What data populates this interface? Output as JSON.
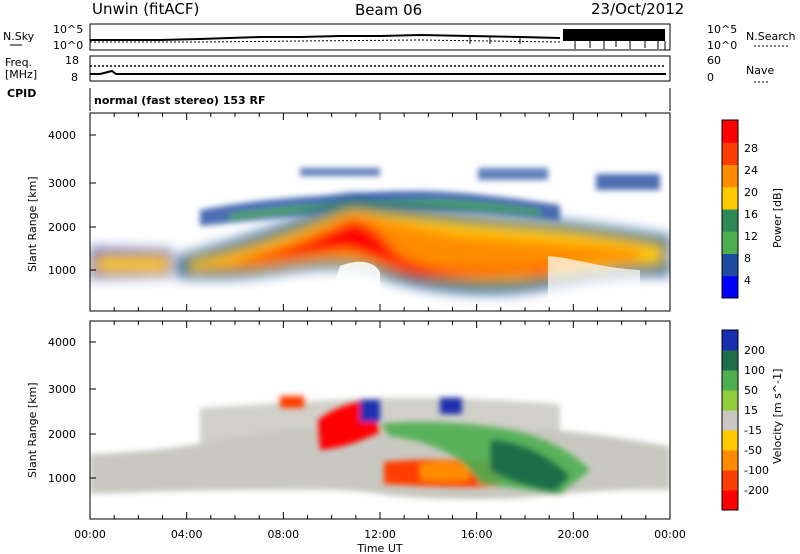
{
  "header": {
    "station": "Unwin (fitACF)",
    "beam": "Beam 06",
    "date": "23/Oct/2012"
  },
  "top_panels": {
    "nsky_label": "N.Sky",
    "nsky_ticks": [
      "10^5",
      "10^0"
    ],
    "nsky_right_ticks": [
      "10^5",
      "10^0"
    ],
    "nsearch_label": "N.Search",
    "freq_label_line1": "Freq.",
    "freq_label_line2": "[MHz]",
    "freq_ticks": [
      "18",
      "8"
    ],
    "nave_ticks": [
      "60",
      "0"
    ],
    "nave_label": "Nave",
    "cpid_label": "CPID",
    "cpid_text": "normal (fast stereo) 153 RF"
  },
  "x_axis": {
    "label": "Time UT",
    "ticks": [
      "00:00",
      "04:00",
      "08:00",
      "12:00",
      "16:00",
      "20:00",
      "00:00"
    ]
  },
  "chart_data": [
    {
      "type": "heatmap",
      "title": "",
      "quantity": "Power",
      "colorbar_label": "Power [dB]",
      "colorbar_ticks": [
        "28",
        "24",
        "20",
        "16",
        "12",
        "8",
        "4"
      ],
      "colorbar_colors": [
        "#ff0000",
        "#ff3c00",
        "#ff8c00",
        "#ffc800",
        "#2e8b57",
        "#4caf50",
        "#1e4aa0",
        "#0000ff"
      ],
      "ylabel": "Slant Range [km]",
      "yticks": [
        "4000",
        "3000",
        "2000",
        "1000"
      ],
      "ylim": [
        180,
        4500
      ],
      "xlabel": "",
      "xlim_hours": [
        0,
        24
      ],
      "grid": false,
      "features": [
        {
          "band": "main echo band",
          "t_start_h": 0.2,
          "t_end_h": 23.0,
          "range_km": [
            800,
            1500
          ],
          "peak_power_db": 28
        },
        {
          "band": "upper echo band",
          "t_start_h": 5.0,
          "t_end_h": 21.0,
          "range_km": [
            1800,
            3300
          ],
          "peak_power_db": 16
        }
      ]
    },
    {
      "type": "heatmap",
      "title": "",
      "quantity": "Velocity",
      "colorbar_label": "Velocity [m s^-1]",
      "colorbar_ticks": [
        "200",
        "100",
        "50",
        "15",
        "-15",
        "-50",
        "-100",
        "-200"
      ],
      "colorbar_colors": [
        "#1a2fb0",
        "#1e6e4a",
        "#4caf50",
        "#8fce3a",
        "#c8c8c0",
        "#ffc800",
        "#ff8c00",
        "#ff3c00",
        "#ff0000"
      ],
      "ylabel": "Slant Range [km]",
      "yticks": [
        "4000",
        "3000",
        "2000",
        "1000"
      ],
      "ylim": [
        180,
        4500
      ],
      "xlabel": "Time UT",
      "xlim_hours": [
        0,
        24
      ],
      "grid": false,
      "features": [
        {
          "region": "ground scatter",
          "t_start_h": 0.0,
          "t_end_h": 23.0,
          "range_km": [
            800,
            2100
          ],
          "velocity_ms": 0
        },
        {
          "region": "negative velocity",
          "t_start_h": 9.0,
          "t_end_h": 11.0,
          "range_km": [
            1500,
            2300
          ],
          "velocity_ms": -200
        },
        {
          "region": "negative velocity",
          "t_start_h": 11.7,
          "t_end_h": 14.0,
          "range_km": [
            800,
            1200
          ],
          "velocity_ms": -200
        },
        {
          "region": "positive velocity",
          "t_start_h": 13.0,
          "t_end_h": 17.5,
          "range_km": [
            900,
            2400
          ],
          "velocity_ms": 100
        }
      ]
    }
  ]
}
